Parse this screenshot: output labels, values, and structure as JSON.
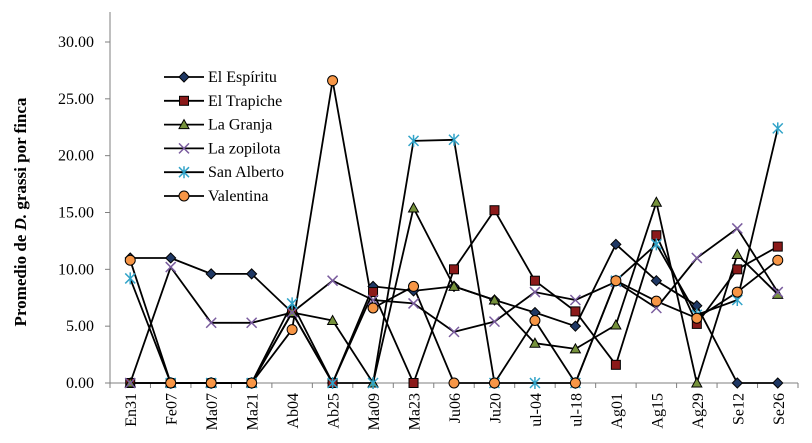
{
  "chart_data": {
    "type": "line",
    "title": "",
    "ylabel_parts": [
      "Promedio de ",
      "D.",
      " grassi por finca"
    ],
    "ylim": [
      0,
      30
    ],
    "yticks": [
      "0.00",
      "5.00",
      "10.00",
      "15.00",
      "20.00",
      "25.00",
      "30.00"
    ],
    "categories": [
      "En31",
      "Fe07",
      "Ma07",
      "Ma21",
      "Ab04",
      "Ab25",
      "Ma09",
      "Ma23",
      "Ju06",
      "Ju20",
      "ul-04",
      "ul-18",
      "Ag01",
      "Ag15",
      "Ag29",
      "Se12",
      "Se26"
    ],
    "grid": false,
    "legend_position": "top-left",
    "series": [
      {
        "name": "El Espíritu",
        "marker": "diamond",
        "color": "#1f3864",
        "values": [
          11.0,
          11.0,
          9.6,
          9.6,
          6.2,
          0.0,
          8.5,
          8.1,
          8.5,
          7.3,
          6.2,
          5.0,
          12.2,
          9.0,
          6.8,
          0.0,
          0.0
        ]
      },
      {
        "name": "El Trapiche",
        "marker": "square",
        "color": "#8b1a1a",
        "values": [
          0.0,
          0.0,
          0.0,
          0.0,
          6.2,
          0.0,
          8.0,
          0.0,
          10.0,
          15.2,
          9.0,
          6.3,
          1.6,
          13.0,
          5.2,
          10.0,
          12.0
        ]
      },
      {
        "name": "La Granja",
        "marker": "triangle",
        "color": "#76923c",
        "values": [
          0.0,
          0.0,
          0.0,
          0.0,
          6.2,
          5.5,
          0.0,
          15.4,
          8.5,
          7.3,
          3.5,
          3.0,
          5.1,
          15.9,
          0.0,
          11.3,
          7.8
        ]
      },
      {
        "name": "La zopilota",
        "marker": "x",
        "color": "#7a5c9e",
        "values": [
          0.0,
          10.2,
          5.3,
          5.3,
          6.2,
          9.0,
          7.3,
          7.0,
          4.5,
          5.4,
          8.0,
          7.3,
          8.9,
          6.6,
          11.0,
          13.6,
          8.0
        ]
      },
      {
        "name": "San Alberto",
        "marker": "star",
        "color": "#31a3c8",
        "values": [
          9.2,
          0.0,
          0.0,
          0.0,
          7.0,
          0.0,
          0.0,
          21.3,
          21.4,
          0.0,
          0.0,
          0.0,
          9.0,
          12.2,
          6.0,
          7.3,
          22.4
        ]
      },
      {
        "name": "Valentina",
        "marker": "circle",
        "color": "#f79646",
        "values": [
          10.8,
          0.0,
          0.0,
          0.0,
          4.7,
          26.6,
          6.6,
          8.5,
          0.0,
          0.0,
          5.5,
          0.0,
          9.0,
          7.2,
          5.7,
          8.0,
          10.8
        ]
      }
    ]
  }
}
